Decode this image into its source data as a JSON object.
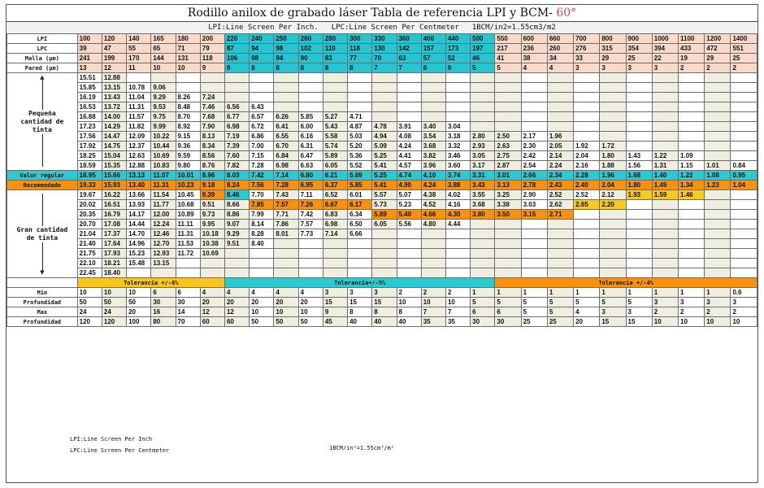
{
  "title": {
    "main": "Rodillo anilox de grabado láser Tabla de referencia LPI y BCM-",
    "suffix": " 60°"
  },
  "subtitle": {
    "lpi_def": "LPI:Line Screen Per Inch.",
    "lpc_def": "LPC:Line Screen Per Centmeter",
    "bcm_def": "1BCM/in2=1.55cm3/m2"
  },
  "header_rows": [
    {
      "label": "LPI",
      "values": [
        "100",
        "120",
        "140",
        "165",
        "180",
        "200",
        "220",
        "240",
        "250",
        "260",
        "280",
        "300",
        "330",
        "360",
        "400",
        "440",
        "500",
        "550",
        "600",
        "660",
        "700",
        "800",
        "900",
        "1000",
        "1100",
        "1200",
        "1400"
      ]
    },
    {
      "label": "LPC",
      "values": [
        "39",
        "47",
        "55",
        "65",
        "71",
        "79",
        "87",
        "94",
        "98",
        "102",
        "110",
        "118",
        "130",
        "142",
        "157",
        "173",
        "197",
        "217",
        "236",
        "260",
        "276",
        "315",
        "354",
        "394",
        "433",
        "472",
        "551"
      ]
    },
    {
      "label": "Malla (μm)",
      "values": [
        "241",
        "199",
        "170",
        "144",
        "131",
        "118",
        "106",
        "98",
        "94",
        "90",
        "83",
        "77",
        "70",
        "63",
        "57",
        "52",
        "46",
        "41",
        "38",
        "34",
        "33",
        "29",
        "25",
        "22",
        "19",
        "29",
        "25"
      ]
    },
    {
      "label": "Pared (μm)",
      "values": [
        "13",
        "12",
        "11",
        "10",
        "10",
        "9",
        "9",
        "8",
        "8",
        "8",
        "8",
        "8",
        "7",
        "7",
        "6",
        "6",
        "5",
        "5",
        "4",
        "4",
        "3",
        "3",
        "3",
        "3",
        "2",
        "2",
        "2"
      ]
    }
  ],
  "side_labels": {
    "low": "Pequeña cantidad de tinta",
    "high": "Gran cantidad de tinta",
    "valor": "Valor regular",
    "recomendado": "Recomendado",
    "arrow_up": "▲",
    "arrow_down": "▼"
  },
  "upper_rows": [
    [
      "15.51",
      "12.88",
      "",
      "",
      "",
      "",
      "",
      "",
      "",
      "",
      "",
      "",
      "",
      "",
      "",
      "",
      "",
      "",
      "",
      "",
      "",
      "",
      "",
      "",
      "",
      "",
      ""
    ],
    [
      "15.85",
      "13.15",
      "10.78",
      "9.06",
      "",
      "",
      "",
      "",
      "",
      "",
      "",
      "",
      "",
      "",
      "",
      "",
      "",
      "",
      "",
      "",
      "",
      "",
      "",
      "",
      "",
      "",
      ""
    ],
    [
      "16.19",
      "13.43",
      "11.04",
      "9.29",
      "8.26",
      "7.24",
      "",
      "",
      "",
      "",
      "",
      "",
      "",
      "",
      "",
      "",
      "",
      "",
      "",
      "",
      "",
      "",
      "",
      "",
      "",
      "",
      ""
    ],
    [
      "16.53",
      "13.72",
      "11.31",
      "9.53",
      "8.48",
      "7.46",
      "6.56",
      "6.43",
      "",
      "",
      "",
      "",
      "",
      "",
      "",
      "",
      "",
      "",
      "",
      "",
      "",
      "",
      "",
      "",
      "",
      "",
      ""
    ],
    [
      "16.88",
      "14.00",
      "11.57",
      "9.75",
      "8.70",
      "7.68",
      "6.77",
      "6.57",
      "6.26",
      "5.85",
      "5.27",
      "4.71",
      "",
      "",
      "",
      "",
      "",
      "",
      "",
      "",
      "",
      "",
      "",
      "",
      "",
      "",
      ""
    ],
    [
      "17.23",
      "14.29",
      "11.82",
      "9.99",
      "8.92",
      "7.90",
      "6.98",
      "6.72",
      "6.41",
      "6.00",
      "5.43",
      "4.87",
      "4.78",
      "3.91",
      "3.40",
      "3.04",
      "",
      "",
      "",
      "",
      "",
      "",
      "",
      "",
      "",
      "",
      ""
    ],
    [
      "17.56",
      "14.47",
      "12.09",
      "10.22",
      "9.15",
      "8.13",
      "7.19",
      "6.86",
      "6.55",
      "6.16",
      "5.58",
      "5.03",
      "4.94",
      "4.08",
      "3.54",
      "3.18",
      "2.80",
      "2.50",
      "2.17",
      "1.96",
      "",
      "",
      "",
      "",
      "",
      "",
      ""
    ],
    [
      "17.92",
      "14.75",
      "12.37",
      "10.44",
      "9.36",
      "8.34",
      "7.39",
      "7.00",
      "6.70",
      "6.31",
      "5.74",
      "5.20",
      "5.09",
      "4.24",
      "3.68",
      "3.32",
      "2.93",
      "2.63",
      "2.30",
      "2.05",
      "1.92",
      "1.72",
      "",
      "",
      "",
      "",
      ""
    ],
    [
      "18.25",
      "15.04",
      "12.63",
      "10.69",
      "9.59",
      "8.56",
      "7.60",
      "7.15",
      "6.84",
      "6.47",
      "5.89",
      "5.36",
      "5.25",
      "4.41",
      "3.82",
      "3.46",
      "3.05",
      "2.75",
      "2.42",
      "2.14",
      "2.04",
      "1.80",
      "1.43",
      "1.22",
      "1.09",
      "",
      ""
    ],
    [
      "18.59",
      "15.35",
      "12.88",
      "10.83",
      "9.80",
      "8.76",
      "7.82",
      "7.28",
      "6.98",
      "6.63",
      "6.05",
      "5.52",
      "5.41",
      "4.57",
      "3.96",
      "3.60",
      "3.17",
      "2.87",
      "2.54",
      "2.24",
      "2.16",
      "1.88",
      "1.56",
      "1.31",
      "1.15",
      "1.01",
      "0.84"
    ]
  ],
  "valor_row": [
    "18.95",
    "15.66",
    "13.13",
    "11.07",
    "10.01",
    "8.96",
    "8.03",
    "7.42",
    "7.14",
    "6.80",
    "6.21",
    "5.69",
    "5.25",
    "4.74",
    "4.10",
    "3.74",
    "3.31",
    "3.01",
    "2.66",
    "2.34",
    "2.28",
    "1.96",
    "1.68",
    "1.40",
    "1.22",
    "1.08",
    "0.95"
  ],
  "recomendado_row": [
    "19.33",
    "15.93",
    "13.40",
    "11.31",
    "10.23",
    "9.18",
    "8.24",
    "7.56",
    "7.28",
    "6.95",
    "6.37",
    "5.85",
    "5.41",
    "4.90",
    "4.24",
    "3.88",
    "3.43",
    "3.13",
    "2.78",
    "2.43",
    "2.40",
    "2.04",
    "1.80",
    "1.49",
    "1.34",
    "1.23",
    "1.04"
  ],
  "lower_rows": [
    [
      "19.67",
      "16.22",
      "13.66",
      "11.54",
      "10.45",
      "9.39",
      "8.46",
      "7.70",
      "7.43",
      "7.11",
      "6.52",
      "6.01",
      "5.57",
      "5.07",
      "4.38",
      "4.02",
      "3.55",
      "3.25",
      "2.90",
      "2.52",
      "2.52",
      "2.12",
      "1.93",
      "1.59",
      "1.46",
      "",
      ""
    ],
    [
      "20.02",
      "16.51",
      "13.93",
      "11.77",
      "10.68",
      "9.51",
      "8.66",
      "7.85",
      "7.57",
      "7.26",
      "6.67",
      "6.17",
      "5.73",
      "5.23",
      "4.52",
      "4.16",
      "3.68",
      "3.38",
      "3.03",
      "2.62",
      "2.65",
      "2.20",
      "",
      "",
      "",
      "",
      ""
    ],
    [
      "20.35",
      "16.79",
      "14.17",
      "12.00",
      "10.89",
      "9.73",
      "8.86",
      "7.99",
      "7.71",
      "7.42",
      "6.83",
      "6.34",
      "5.89",
      "5.40",
      "4.66",
      "4.30",
      "3.80",
      "3.50",
      "3.15",
      "2.71",
      "",
      "",
      "",
      "",
      "",
      "",
      ""
    ],
    [
      "20.70",
      "17.08",
      "14.44",
      "12.24",
      "11.11",
      "9.95",
      "9.07",
      "8.14",
      "7.86",
      "7.57",
      "6.98",
      "6.50",
      "6.05",
      "5.56",
      "4.80",
      "4.44",
      "",
      "",
      "",
      "",
      "",
      "",
      "",
      "",
      "",
      "",
      ""
    ],
    [
      "21.04",
      "17.37",
      "14.70",
      "12.46",
      "11.31",
      "10.18",
      "9.29",
      "8.28",
      "8.01",
      "7.73",
      "7.14",
      "6.66",
      "",
      "",
      "",
      "",
      "",
      "",
      "",
      "",
      "",
      "",
      "",
      "",
      "",
      "",
      ""
    ],
    [
      "21.40",
      "17.64",
      "14.96",
      "12.70",
      "11.53",
      "10.38",
      "9.51",
      "8.40",
      "",
      "",
      "",
      "",
      "",
      "",
      "",
      "",
      "",
      "",
      "",
      "",
      "",
      "",
      "",
      "",
      "",
      "",
      ""
    ],
    [
      "21.75",
      "17.93",
      "15.23",
      "12.93",
      "11.72",
      "10.69",
      "",
      "",
      "",
      "",
      "",
      "",
      "",
      "",
      "",
      "",
      "",
      "",
      "",
      "",
      "",
      "",
      "",
      "",
      "",
      "",
      ""
    ],
    [
      "22.10",
      "18.21",
      "15.48",
      "13.15",
      "",
      "",
      "",
      "",
      "",
      "",
      "",
      "",
      "",
      "",
      "",
      "",
      "",
      "",
      "",
      "",
      "",
      "",
      "",
      "",
      "",
      "",
      ""
    ],
    [
      "22.45",
      "18.40",
      "",
      "",
      "",
      "",
      "",
      "",
      "",
      "",
      "",
      "",
      "",
      "",
      "",
      "",
      "",
      "",
      "",
      "",
      "",
      "",
      "",
      "",
      "",
      "",
      ""
    ]
  ],
  "tolerance": {
    "a": "Tolerancia +/-6%",
    "b": "Tolerancia+/-5%",
    "c": "Tolerancia +/-4%"
  },
  "footer_rows": [
    {
      "label": "Min",
      "values": [
        "10",
        "10",
        "10",
        "6",
        "6",
        "4",
        "4",
        "4",
        "4",
        "4",
        "3",
        "3",
        "3",
        "2",
        "2",
        "2",
        "1",
        "1",
        "1",
        "1",
        "1",
        "1",
        "1",
        "1",
        "1",
        "1",
        "0.6"
      ]
    },
    {
      "label": "Profundidad",
      "values": [
        "50",
        "50",
        "50",
        "30",
        "30",
        "20",
        "20",
        "20",
        "20",
        "20",
        "15",
        "15",
        "15",
        "10",
        "10",
        "10",
        "5",
        "5",
        "5",
        "5",
        "5",
        "5",
        "5",
        "3",
        "3",
        "3",
        "3"
      ]
    },
    {
      "label": "Max",
      "values": [
        "24",
        "24",
        "20",
        "16",
        "14",
        "12",
        "12",
        "10",
        "10",
        "10",
        "9",
        "8",
        "8",
        "8",
        "7",
        "7",
        "6",
        "6",
        "5",
        "5",
        "4",
        "3",
        "3",
        "2",
        "2",
        "2",
        "2"
      ]
    },
    {
      "label": "Profundidad",
      "values": [
        "120",
        "120",
        "100",
        "80",
        "70",
        "60",
        "60",
        "50",
        "50",
        "50",
        "45",
        "40",
        "40",
        "40",
        "35",
        "35",
        "30",
        "30",
        "25",
        "25",
        "20",
        "15",
        "15",
        "10",
        "10",
        "10",
        "10"
      ]
    }
  ],
  "notes": {
    "lpi": "LPI:Line Screen Per Inch",
    "lpc": "LPC:Line Screen Per Centmeter",
    "bcm": "1BCM/in²=1.55cm³/m²"
  },
  "colors": {
    "pale_col": "#f0eee1",
    "teal": "#2ec8d2",
    "orange": "#f59212",
    "yellow": "#f8c520",
    "header_orange": "#f9d9c9"
  }
}
